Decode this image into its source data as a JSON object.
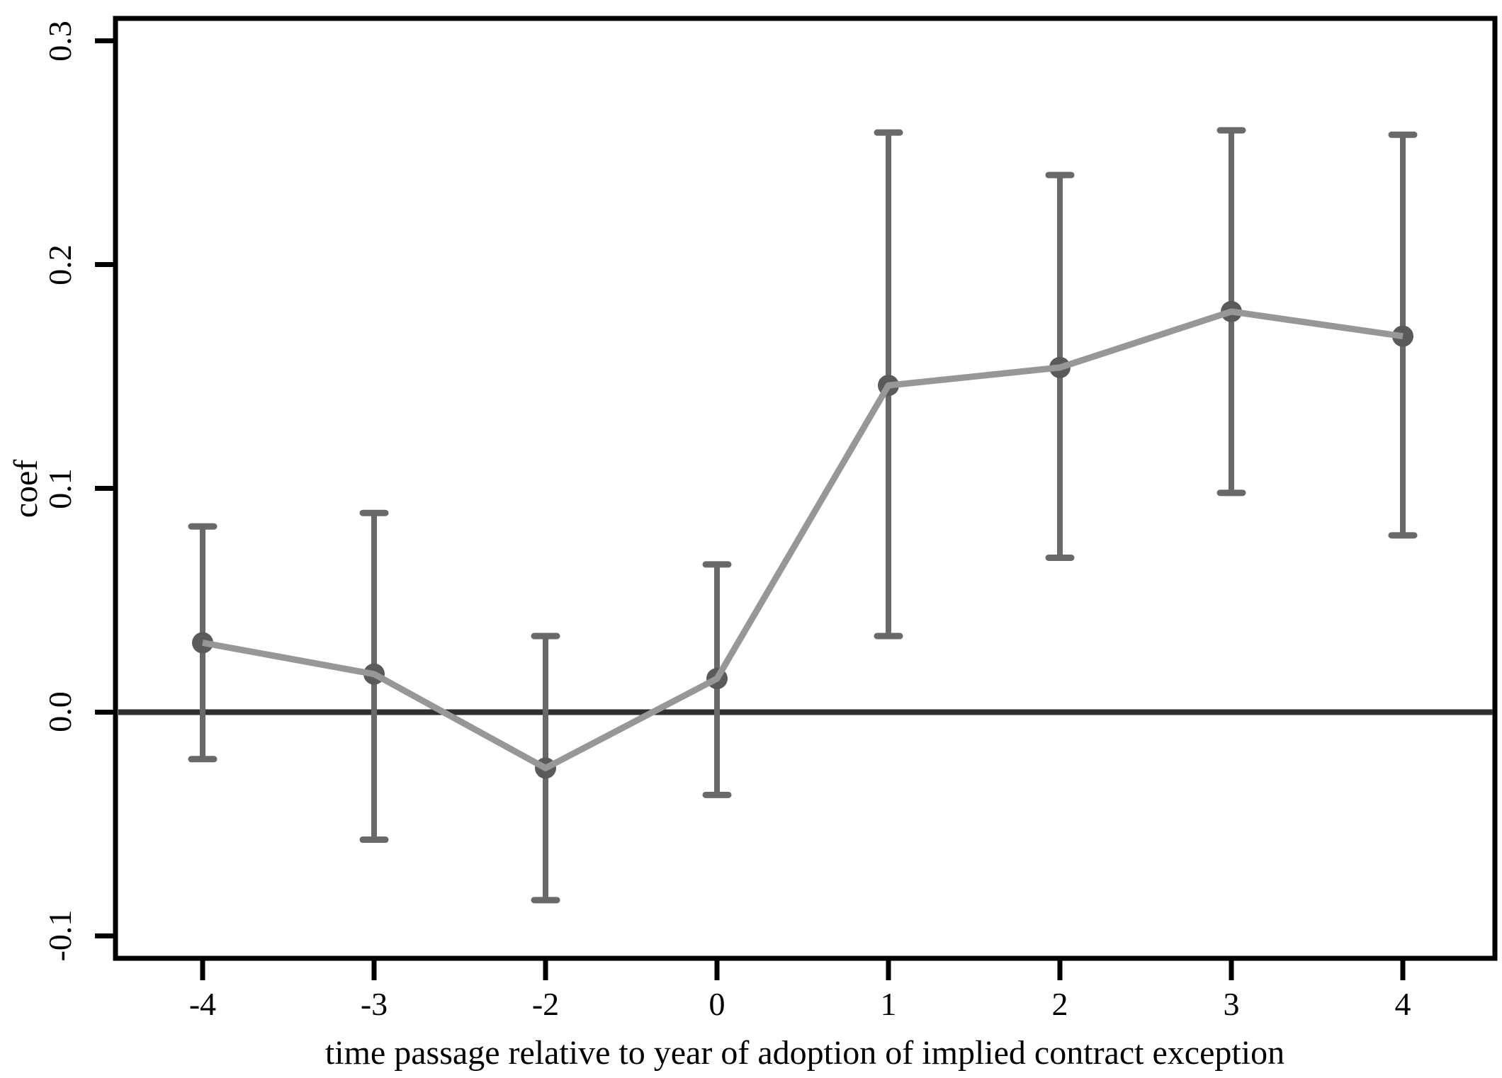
{
  "chart_data": {
    "type": "scatter",
    "subtype": "coefficient-event-study-with-error-bars",
    "title": "",
    "xlabel": "time passage relative to year of adoption of implied contract exception",
    "ylabel": "coef",
    "x": [
      -4,
      -3,
      -2,
      0,
      1,
      2,
      3,
      4
    ],
    "xtick_labels": [
      "-4",
      "-3",
      "-2",
      "0",
      "1",
      "2",
      "3",
      "4"
    ],
    "series": [
      {
        "name": "coef",
        "values": [
          0.031,
          0.017,
          -0.025,
          0.015,
          0.146,
          0.154,
          0.179,
          0.168
        ]
      },
      {
        "name": "ci_lower",
        "values": [
          -0.021,
          -0.057,
          -0.084,
          -0.037,
          0.034,
          0.069,
          0.098,
          0.079
        ]
      },
      {
        "name": "ci_upper",
        "values": [
          0.083,
          0.089,
          0.034,
          0.066,
          0.259,
          0.24,
          0.26,
          0.258
        ]
      }
    ],
    "yticks": [
      0.3,
      0.2,
      0.1,
      0.0,
      -0.1
    ],
    "ytick_labels": [
      "0.3",
      "0.2",
      "0.1",
      "0.0",
      "-0.1"
    ],
    "ylim": [
      -0.11,
      0.31
    ],
    "grid": false,
    "legend": "none",
    "reference_line_y": 0.0,
    "marker": "circle",
    "colors": {
      "axis": "#000000",
      "text": "#000000",
      "reference_line": "#2f2f2f",
      "error_bar": "#696969",
      "marker": "#5a5a5a",
      "connect_line": "#979797",
      "background": "#ffffff"
    }
  }
}
